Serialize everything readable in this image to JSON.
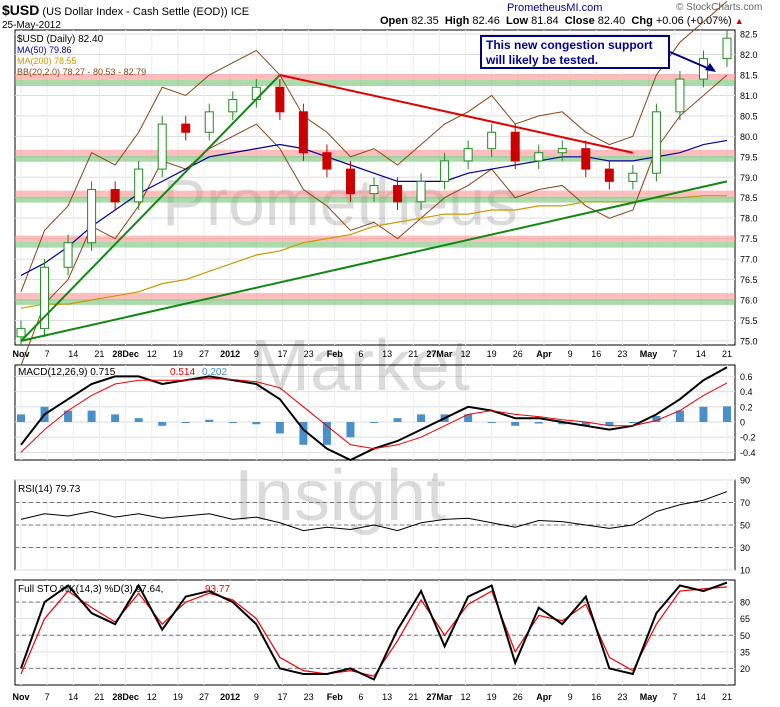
{
  "header": {
    "symbol": "$USD",
    "description": "(US Dollar Index - Cash Settle (EOD))",
    "exchange": "ICE",
    "date": "25-May-2012",
    "open_label": "Open",
    "open": "82.35",
    "high_label": "High",
    "high": "82.46",
    "low_label": "Low",
    "low": "81.84",
    "close_label": "Close",
    "close": "82.40",
    "chg_label": "Chg",
    "chg": "+0.06 (+0.07%)",
    "site": "PrometheusMI.com",
    "source": "© StockCharts.com"
  },
  "legend": {
    "price": "$USD (Daily) 82.40",
    "ma50": "MA(50) 79.86",
    "ma200": "MA(200) 78.55",
    "bb": "BB(20,2.0) 78.27 - 80.53 - 82.79"
  },
  "annotation": {
    "line1": "This new congestion support",
    "line2": "will likely be tested."
  },
  "watermark": [
    "Prometheus",
    "Market",
    "Insight"
  ],
  "colors": {
    "up": "#228b22",
    "down": "#cc0000",
    "ma50": "#000099",
    "ma200": "#cc9900",
    "bb": "#8b4513",
    "resistance_band": "#ff8888",
    "support_band": "#66bb66",
    "macd_hist": "#4a90c8",
    "annotation_border": "#000080"
  },
  "x_axis": {
    "labels": [
      "Nov",
      "7",
      "14",
      "21",
      "28Dec",
      "12",
      "19",
      "27",
      "2012",
      "9",
      "17",
      "23",
      "Feb",
      "6",
      "13",
      "21",
      "27Mar",
      "12",
      "19",
      "26",
      "Apr",
      "9",
      "16",
      "23",
      "May",
      "7",
      "14",
      "21"
    ],
    "bold": [
      "Nov",
      "2012",
      "Feb",
      "Mar",
      "Apr",
      "May"
    ]
  },
  "panels": {
    "macd": {
      "title": "MACD(12,26,9)",
      "macd": "0.715",
      "signal": "0.514",
      "hist": "0.202"
    },
    "rsi": {
      "title": "RSI(14)",
      "value": "79.73"
    },
    "sto": {
      "title": "Full STO %K(14,3) %D(3)",
      "k": "97.64",
      "d": "93.77"
    }
  },
  "chart_data": [
    {
      "type": "line",
      "title": "$USD (US Dollar Index - Cash Settle (EOD))",
      "series_type": "ohlc-candlestick",
      "x": [
        "Nov 1",
        "Nov 7",
        "Nov 14",
        "Nov 21",
        "Nov 28",
        "Dec 5",
        "Dec 12",
        "Dec 19",
        "Dec 27",
        "Jan 3",
        "Jan 9",
        "Jan 17",
        "Jan 23",
        "Jan 30",
        "Feb 6",
        "Feb 13",
        "Feb 21",
        "Feb 27",
        "Mar 5",
        "Mar 12",
        "Mar 19",
        "Mar 26",
        "Apr 2",
        "Apr 9",
        "Apr 16",
        "Apr 23",
        "Apr 30",
        "May 7",
        "May 14",
        "May 21",
        "May 25"
      ],
      "series": [
        {
          "name": "$USD (Daily)",
          "values": [
            75.3,
            76.8,
            77.4,
            78.7,
            78.4,
            79.2,
            80.3,
            80.1,
            80.6,
            80.9,
            81.2,
            80.6,
            79.6,
            79.2,
            78.6,
            78.8,
            78.4,
            78.9,
            79.4,
            79.7,
            80.1,
            79.4,
            79.6,
            79.7,
            79.2,
            78.9,
            79.1,
            80.6,
            81.4,
            81.9,
            82.4
          ]
        },
        {
          "name": "MA(50)",
          "values": [
            76.6,
            76.9,
            77.3,
            77.8,
            78.2,
            78.6,
            78.9,
            79.2,
            79.5,
            79.6,
            79.7,
            79.8,
            79.7,
            79.5,
            79.3,
            79.1,
            78.9,
            78.9,
            78.9,
            79.1,
            79.2,
            79.3,
            79.4,
            79.5,
            79.5,
            79.4,
            79.4,
            79.5,
            79.6,
            79.8,
            79.9
          ]
        },
        {
          "name": "MA(200)",
          "values": [
            75.8,
            75.9,
            75.9,
            76.0,
            76.1,
            76.2,
            76.4,
            76.5,
            76.7,
            76.9,
            77.1,
            77.2,
            77.4,
            77.5,
            77.6,
            77.8,
            77.9,
            78.0,
            78.1,
            78.1,
            78.2,
            78.2,
            78.3,
            78.3,
            78.4,
            78.4,
            78.4,
            78.5,
            78.5,
            78.55,
            78.55
          ]
        }
      ],
      "ylim": [
        74.9,
        82.6
      ],
      "yticks": [
        75.0,
        75.5,
        76.0,
        76.5,
        77.0,
        77.5,
        78.0,
        78.5,
        79.0,
        79.5,
        80.0,
        80.5,
        81.0,
        81.5,
        82.0,
        82.5
      ],
      "resistance_bands": [
        81.45,
        79.6,
        78.6,
        77.5,
        76.1
      ],
      "support_bands": [
        81.45,
        79.6,
        78.6,
        77.5,
        76.1
      ],
      "trendlines": [
        {
          "name": "up-trend 1",
          "from": [
            "Nov 1",
            75.0
          ],
          "to": [
            "Jan 17",
            81.5
          ]
        },
        {
          "name": "up-trend 2",
          "from": [
            "Nov 1",
            75.0
          ],
          "to": [
            "May 25",
            78.9
          ]
        },
        {
          "name": "down-trend",
          "from": [
            "Jan 17",
            81.5
          ],
          "to": [
            "Apr 30",
            79.6
          ]
        }
      ],
      "grid": true
    },
    {
      "type": "line",
      "title": "MACD(12,26,9)",
      "series": [
        {
          "name": "MACD",
          "values": [
            -0.3,
            0.1,
            0.3,
            0.5,
            0.6,
            0.6,
            0.5,
            0.55,
            0.6,
            0.55,
            0.5,
            0.3,
            -0.1,
            -0.35,
            -0.5,
            -0.35,
            -0.25,
            -0.1,
            0.05,
            0.2,
            0.15,
            0.05,
            0.05,
            0.0,
            -0.05,
            -0.1,
            -0.05,
            0.1,
            0.3,
            0.55,
            0.72
          ]
        },
        {
          "name": "Signal",
          "values": [
            -0.4,
            -0.1,
            0.15,
            0.35,
            0.5,
            0.55,
            0.55,
            0.55,
            0.57,
            0.56,
            0.53,
            0.45,
            0.2,
            -0.05,
            -0.3,
            -0.35,
            -0.3,
            -0.2,
            -0.05,
            0.1,
            0.15,
            0.1,
            0.07,
            0.03,
            0.0,
            -0.05,
            -0.05,
            0.02,
            0.15,
            0.35,
            0.514
          ]
        }
      ],
      "ylim": [
        -0.5,
        0.75
      ],
      "yticks": [
        -0.4,
        -0.2,
        0.0,
        0.2,
        0.4,
        0.6
      ]
    },
    {
      "type": "line",
      "title": "RSI(14)",
      "series": [
        {
          "name": "RSI(14)",
          "values": [
            55,
            60,
            58,
            62,
            57,
            60,
            56,
            58,
            60,
            55,
            57,
            52,
            45,
            48,
            46,
            50,
            45,
            52,
            55,
            56,
            52,
            48,
            54,
            53,
            50,
            47,
            50,
            62,
            68,
            72,
            79.73
          ]
        }
      ],
      "ylim": [
        10,
        90
      ],
      "yticks": [
        10,
        30,
        50,
        70,
        90
      ]
    },
    {
      "type": "line",
      "title": "Full STO %K(14,3) %D(3)",
      "series": [
        {
          "name": "%K",
          "values": [
            20,
            80,
            95,
            70,
            60,
            95,
            55,
            85,
            90,
            80,
            60,
            20,
            15,
            15,
            20,
            10,
            55,
            90,
            40,
            85,
            95,
            25,
            75,
            60,
            85,
            20,
            15,
            70,
            95,
            90,
            97.64
          ]
        },
        {
          "name": "%D",
          "values": [
            15,
            65,
            90,
            75,
            62,
            88,
            60,
            80,
            88,
            82,
            65,
            30,
            18,
            15,
            18,
            13,
            45,
            82,
            50,
            78,
            90,
            35,
            68,
            63,
            78,
            30,
            18,
            60,
            90,
            92,
            93.77
          ]
        }
      ],
      "ylim": [
        5,
        100
      ],
      "yticks": [
        20,
        35,
        50,
        65,
        80
      ]
    }
  ]
}
